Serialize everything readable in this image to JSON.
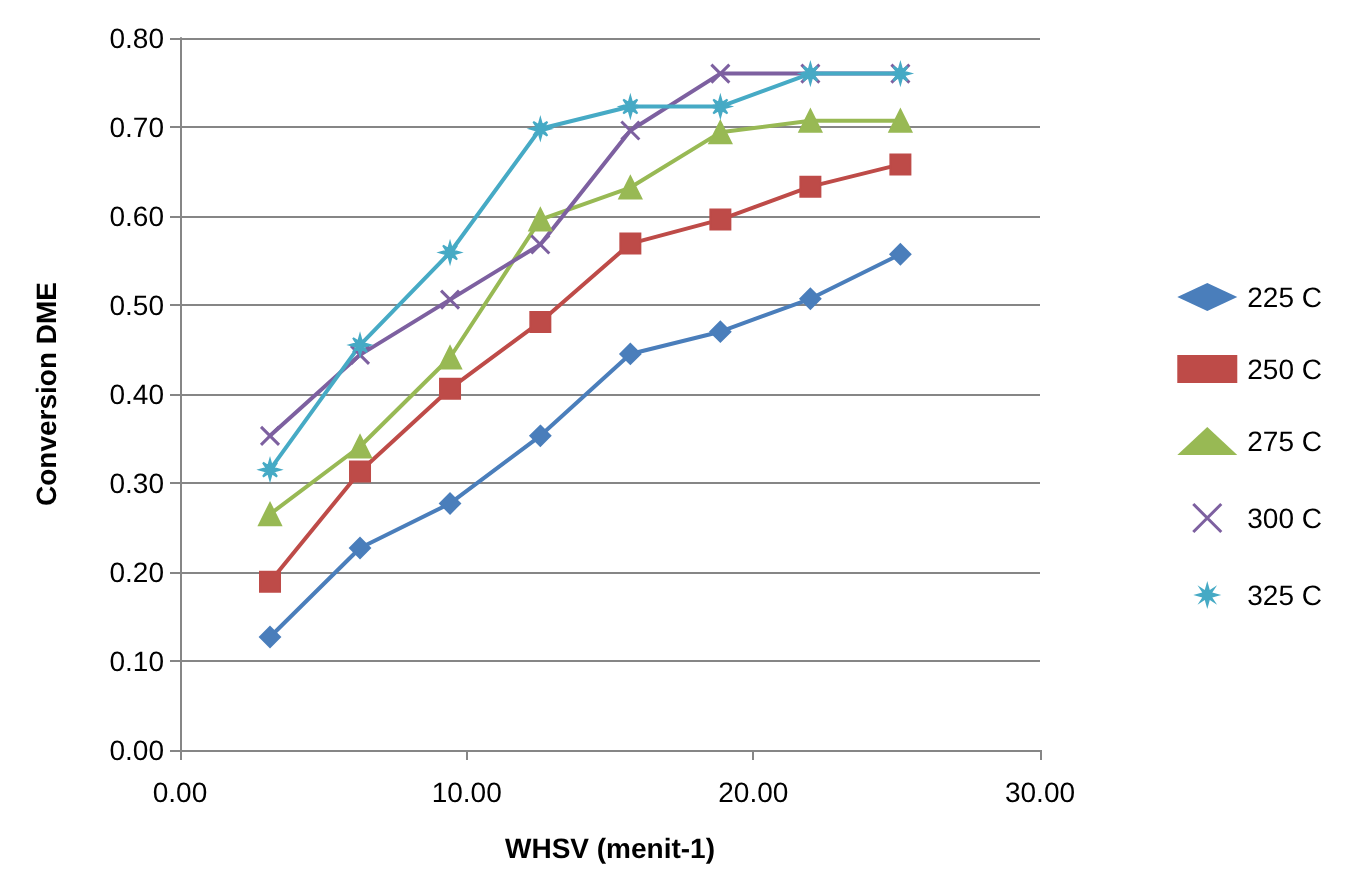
{
  "chart_data": {
    "type": "line",
    "xlabel": "WHSV (menit-1)",
    "ylabel": "Conversion DME",
    "x": [
      3.14,
      6.28,
      9.42,
      12.57,
      15.71,
      18.85,
      21.99,
      25.13
    ],
    "series": [
      {
        "name": "225 C",
        "color": "#4a7ebb",
        "marker": "diamond",
        "values": [
          0.127,
          0.227,
          0.277,
          0.353,
          0.445,
          0.47,
          0.507,
          0.557
        ]
      },
      {
        "name": "250 C",
        "color": "#be4b48",
        "marker": "square",
        "values": [
          0.189,
          0.313,
          0.406,
          0.481,
          0.569,
          0.596,
          0.633,
          0.658
        ]
      },
      {
        "name": "275 C",
        "color": "#98b954",
        "marker": "triangle",
        "values": [
          0.265,
          0.341,
          0.441,
          0.596,
          0.632,
          0.694,
          0.707,
          0.707
        ]
      },
      {
        "name": "300 C",
        "color": "#7d60a0",
        "marker": "cross",
        "values": [
          0.353,
          0.444,
          0.506,
          0.568,
          0.696,
          0.76,
          0.76,
          0.76
        ]
      },
      {
        "name": "325 C",
        "color": "#46aac5",
        "marker": "star",
        "values": [
          0.315,
          0.455,
          0.559,
          0.698,
          0.723,
          0.723,
          0.76,
          0.76
        ]
      }
    ],
    "xlim": [
      0,
      30
    ],
    "xticks": [
      {
        "value": 0,
        "label": "0.00"
      },
      {
        "value": 10,
        "label": "10.00"
      },
      {
        "value": 20,
        "label": "20.00"
      },
      {
        "value": 30,
        "label": "30.00"
      }
    ],
    "ylim": [
      0,
      0.8
    ],
    "yticks": [
      {
        "value": 0,
        "label": "0.00"
      },
      {
        "value": 0.1,
        "label": "0.10"
      },
      {
        "value": 0.2,
        "label": "0.20"
      },
      {
        "value": 0.3,
        "label": "0.30"
      },
      {
        "value": 0.4,
        "label": "0.40"
      },
      {
        "value": 0.5,
        "label": "0.50"
      },
      {
        "value": 0.6,
        "label": "0.60"
      },
      {
        "value": 0.7,
        "label": "0.70"
      },
      {
        "value": 0.8,
        "label": "0.80"
      }
    ],
    "grid": "y",
    "legend": "right",
    "line_style": "solid"
  }
}
